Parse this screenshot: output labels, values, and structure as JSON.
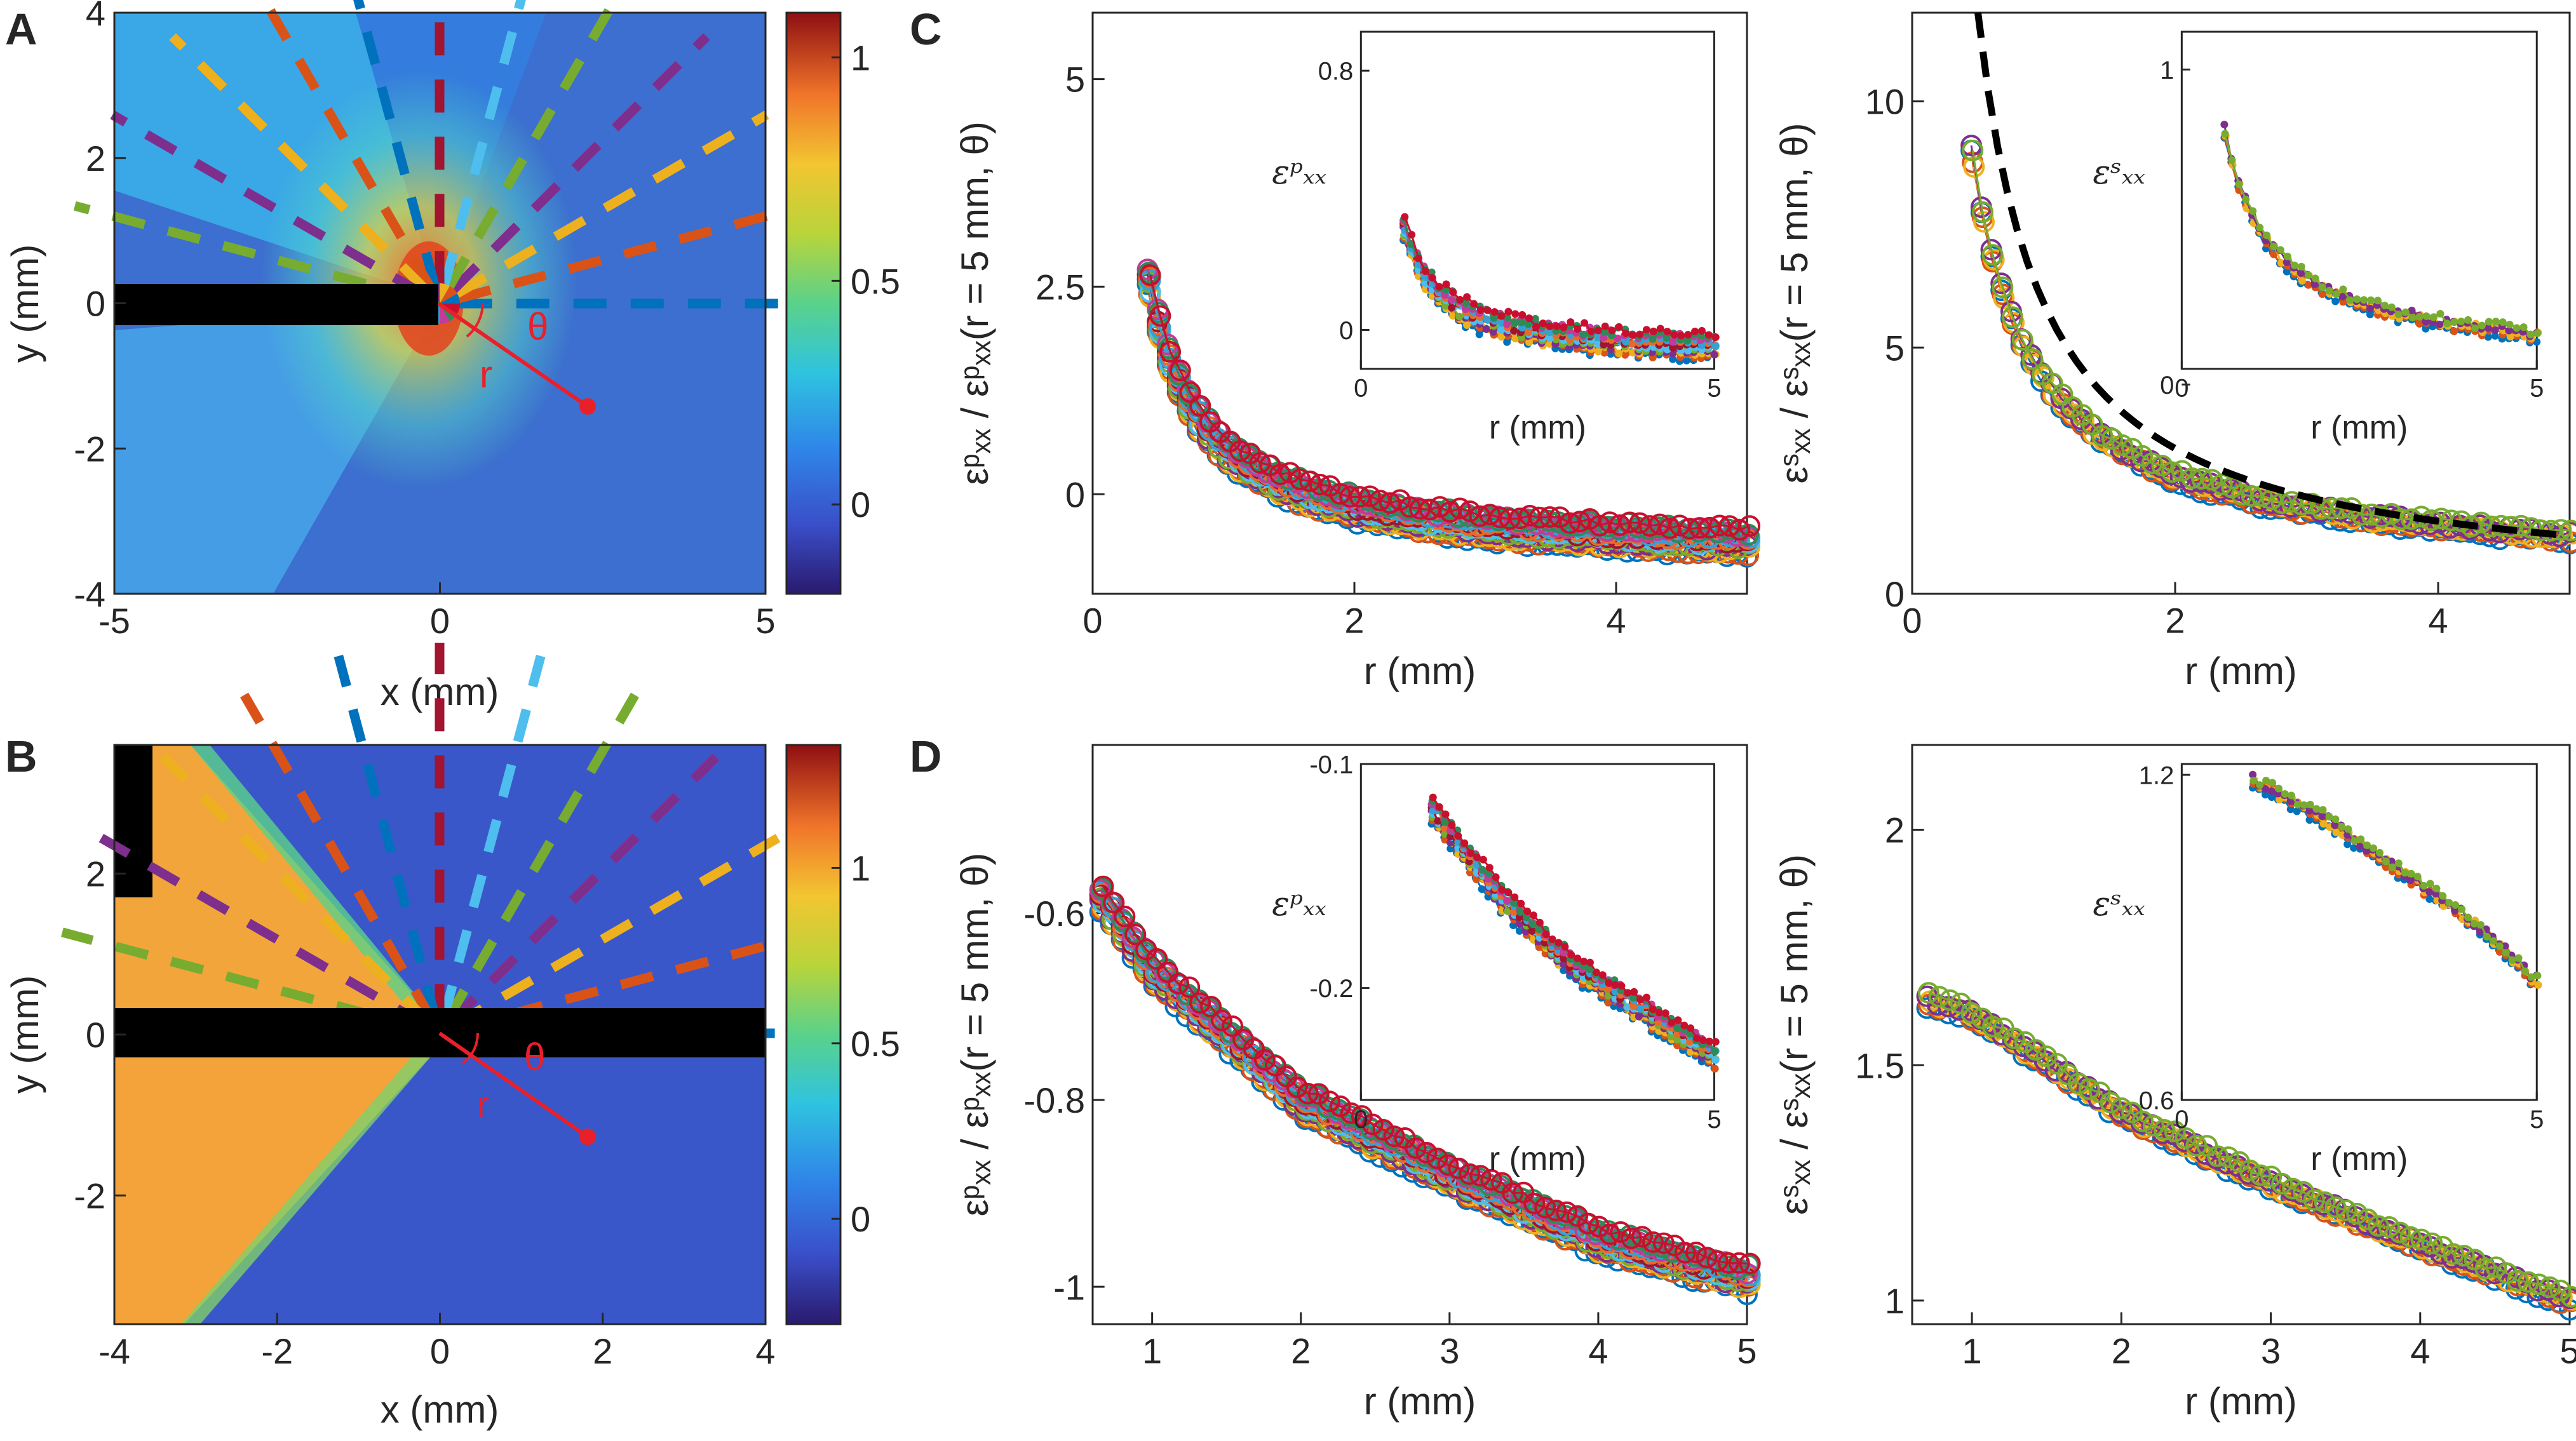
{
  "panel_letters": {
    "a": "A",
    "b": "B",
    "c": "C",
    "d": "D"
  },
  "chart_data": [
    {
      "id": "A",
      "type": "heatmap",
      "xlabel": "x (mm)",
      "ylabel": "y (mm)",
      "xlim": [
        -5,
        5
      ],
      "ylim": [
        -4,
        4
      ],
      "xticks": [
        "-5",
        "0",
        "5"
      ],
      "yticks": [
        "-4",
        "-2",
        "0",
        "2",
        "4"
      ],
      "colorbar": {
        "range": [
          -0.2,
          1.1
        ],
        "ticks": [
          "0",
          "0.5",
          "1"
        ],
        "colormap": "jet"
      },
      "crack": {
        "y_range": [
          -0.35,
          0.35
        ],
        "x_from": -5,
        "x_to": 0
      },
      "annotation": {
        "theta_label": "θ",
        "r_label": "r",
        "point": [
          2.2,
          -1.5
        ],
        "color": "#e8202a"
      },
      "rays": {
        "radius_range": [
          1.2,
          5.8
        ],
        "angles_deg": [
          0,
          15,
          30,
          45,
          60,
          75,
          90,
          105,
          120,
          135,
          150,
          165
        ],
        "colors": [
          "#0072BD",
          "#D95319",
          "#EDB120",
          "#7E2F8E",
          "#77AC30",
          "#4DBEEE",
          "#A2142F"
        ]
      }
    },
    {
      "id": "B",
      "type": "heatmap",
      "xlabel": "x (mm)",
      "ylabel": "y (mm)",
      "xlim": [
        -4,
        4
      ],
      "ylim": [
        -3.6,
        3.6
      ],
      "xticks": [
        "-4",
        "-2",
        "0",
        "2",
        "4"
      ],
      "yticks": [
        "-2",
        "0",
        "2"
      ],
      "colorbar": {
        "range": [
          -0.3,
          1.35
        ],
        "ticks": [
          "0",
          "0.5",
          "1"
        ],
        "colormap": "jet"
      },
      "crack": {
        "y_range": [
          -0.3,
          0.3
        ],
        "x_from": -4,
        "x_to": 0
      },
      "annotation": {
        "theta_label": "θ",
        "r_label": "r",
        "point": [
          1.8,
          -1.5
        ],
        "color": "#e8202a"
      },
      "rays": {
        "radius_range": [
          0.8,
          4.8
        ],
        "angles_deg": [
          0,
          15,
          30,
          45,
          60,
          75,
          90,
          105,
          120,
          135,
          150,
          165
        ],
        "colors": [
          "#0072BD",
          "#D95319",
          "#EDB120",
          "#7E2F8E",
          "#77AC30",
          "#4DBEEE",
          "#A2142F"
        ]
      }
    },
    {
      "id": "C-p",
      "type": "scatter",
      "xlabel": "r (mm)",
      "ylabel": "εᵖₓₓ / εᵖₓₓ(r = 5 mm, θ)",
      "xlim": [
        0,
        5
      ],
      "ylim": [
        -1.2,
        5.8
      ],
      "xticks": [
        "0",
        "2",
        "4"
      ],
      "yticks": [
        "0",
        "2.5",
        "5"
      ],
      "curve": {
        "kind": "power",
        "y0": -0.82,
        "a": 1.4,
        "p": 1.05,
        "x_start": 0.42,
        "x_end": 5
      },
      "series_count": 12,
      "inset": {
        "xlabel": "r (mm)",
        "ylabel": "εᵖₓₓ",
        "xlim": [
          0,
          5
        ],
        "ylim": [
          -0.12,
          0.92
        ],
        "xticks": [
          "0",
          "5"
        ],
        "yticks": [
          "0",
          "0.8"
        ],
        "curve": {
          "kind": "power",
          "y0": -0.08,
          "a": 0.22,
          "p": 1.2,
          "x_start": 0.6,
          "x_end": 5
        }
      }
    },
    {
      "id": "C-s",
      "type": "scatter",
      "xlabel": "r (mm)",
      "ylabel": "εˢₓₓ / εˢₓₓ(r = 5 mm, θ)",
      "xlim": [
        0,
        5
      ],
      "ylim": [
        0,
        11.8
      ],
      "xticks": [
        "0",
        "2",
        "4"
      ],
      "yticks": [
        "0",
        "5",
        "10"
      ],
      "curve": {
        "kind": "power",
        "y0": 0.3,
        "a": 4.1,
        "p": 0.95,
        "x_start": 0.45,
        "x_end": 5
      },
      "fit": {
        "style": "dashed",
        "color": "#000000",
        "kind": "power",
        "a": 5.9,
        "p": 1.0,
        "x_start": 0.5,
        "x_end": 5
      },
      "series_count": 5,
      "inset": {
        "xlabel": "r (mm)",
        "ylabel": "εˢₓₓ",
        "xlim": [
          0,
          5
        ],
        "ylim": [
          0.05,
          1.12
        ],
        "xticks": [
          "0",
          "5"
        ],
        "yticks": [
          "0",
          "1"
        ],
        "curve": {
          "kind": "power",
          "y0": 0.05,
          "a": 0.48,
          "p": 0.9,
          "x_start": 0.6,
          "x_end": 5
        }
      }
    },
    {
      "id": "D-p",
      "type": "scatter",
      "xlabel": "r (mm)",
      "ylabel": "εᵖₓₓ / εᵖₓₓ(r = 5 mm, θ)",
      "xlim": [
        0.6,
        5
      ],
      "ylim": [
        -1.04,
        -0.42
      ],
      "xticks": [
        "1",
        "2",
        "3",
        "4",
        "5"
      ],
      "yticks": [
        "-1",
        "-0.8",
        "-0.6"
      ],
      "curve": {
        "kind": "linear-ish",
        "points": [
          [
            0.65,
            -0.58
          ],
          [
            1.0,
            -0.66
          ],
          [
            2.0,
            -0.8
          ],
          [
            3.0,
            -0.88
          ],
          [
            4.0,
            -0.95
          ],
          [
            5.0,
            -0.99
          ]
        ]
      },
      "series_count": 12,
      "inset": {
        "xlabel": "r (mm)",
        "ylabel": "εᵖₓₓ",
        "xlim": [
          0,
          5
        ],
        "ylim": [
          -0.25,
          -0.1
        ],
        "xticks": [
          "0",
          "5"
        ],
        "yticks": [
          "-0.2",
          "-0.1"
        ],
        "curve": {
          "kind": "linear-ish",
          "points": [
            [
              1.0,
              -0.12
            ],
            [
              2.0,
              -0.16
            ],
            [
              3.0,
              -0.19
            ],
            [
              4.0,
              -0.21
            ],
            [
              5.0,
              -0.23
            ]
          ]
        }
      }
    },
    {
      "id": "D-s",
      "type": "scatter",
      "xlabel": "r (mm)",
      "ylabel": "εˢₓₓ / εˢₓₓ(r = 5 mm, θ)",
      "xlim": [
        0.6,
        5
      ],
      "ylim": [
        0.95,
        2.18
      ],
      "xticks": [
        "1",
        "2",
        "3",
        "4",
        "5"
      ],
      "yticks": [
        "1",
        "1.5",
        "2"
      ],
      "curve": {
        "kind": "linear-ish",
        "points": [
          [
            0.7,
            1.64
          ],
          [
            1.0,
            1.61
          ],
          [
            2.0,
            1.4
          ],
          [
            3.0,
            1.25
          ],
          [
            4.0,
            1.12
          ],
          [
            5.0,
            1.0
          ]
        ]
      },
      "series_count": 5,
      "inset": {
        "xlabel": "r (mm)",
        "ylabel": "εˢₓₓ",
        "xlim": [
          0,
          5
        ],
        "ylim": [
          0.6,
          1.22
        ],
        "xticks": [
          "0",
          "5"
        ],
        "yticks": [
          "0.6",
          "1.2"
        ],
        "curve": {
          "kind": "linear-ish",
          "points": [
            [
              1.0,
              1.19
            ],
            [
              2.0,
              1.12
            ],
            [
              3.0,
              1.03
            ],
            [
              4.0,
              0.94
            ],
            [
              5.0,
              0.82
            ]
          ]
        }
      }
    }
  ],
  "series_colors": [
    "#0072BD",
    "#D95319",
    "#EDB120",
    "#7E2F8E",
    "#77AC30",
    "#4DBEEE",
    "#A2142F",
    "#E86A2A",
    "#33A3D4",
    "#C23B9A",
    "#2E8B57",
    "#C8102E"
  ]
}
